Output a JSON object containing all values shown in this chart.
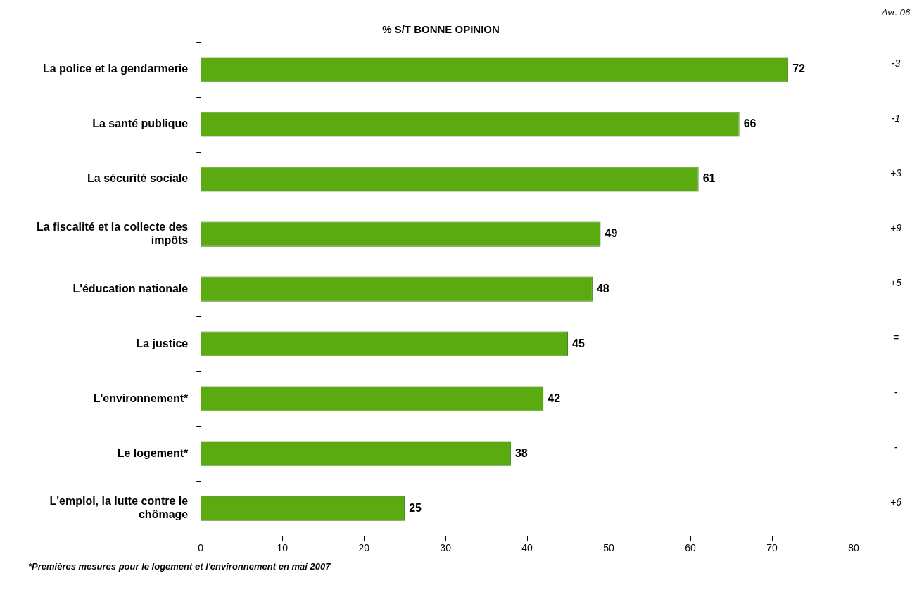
{
  "chart_data": {
    "type": "bar",
    "orientation": "horizontal",
    "title": "% S/T BONNE OPINION",
    "categories": [
      "La police et la gendarmerie",
      "La santé publique",
      "La sécurité sociale",
      "La fiscalité et la collecte des impôts",
      "L'éducation nationale",
      "La justice",
      "L'environnement*",
      "Le logement*",
      "L'emploi, la lutte contre le chômage"
    ],
    "values": [
      72,
      66,
      61,
      49,
      48,
      45,
      42,
      38,
      25
    ],
    "color": "#5aaa10",
    "xlim": [
      0,
      80
    ],
    "xticks": [
      0,
      10,
      20,
      30,
      40,
      50,
      60,
      70,
      80
    ],
    "data_labels": true,
    "annotations": [
      "Avr. 06",
      "-3",
      "-1",
      "+3",
      "+9",
      "+5",
      "=",
      "-",
      "-",
      "+6",
      "*Premières mesures pour le logement et l'environnement en mai 2007"
    ]
  }
}
